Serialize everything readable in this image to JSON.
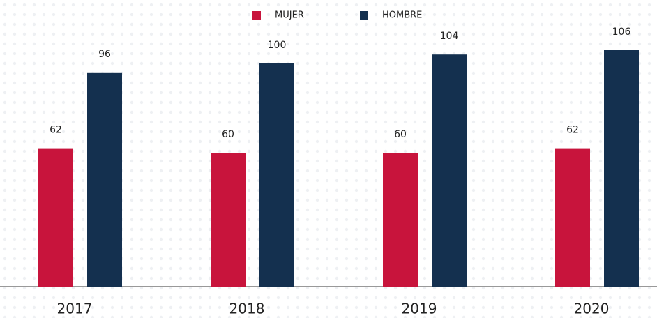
{
  "chart_data": {
    "type": "bar",
    "categories": [
      "2017",
      "2018",
      "2019",
      "2020"
    ],
    "series": [
      {
        "name": "MUJER",
        "color": "#c8143c",
        "values": [
          62,
          60,
          60,
          62
        ]
      },
      {
        "name": "HOMBRE",
        "color": "#14304f",
        "values": [
          96,
          100,
          104,
          106
        ]
      }
    ],
    "ylim": [
      0,
      128
    ]
  }
}
